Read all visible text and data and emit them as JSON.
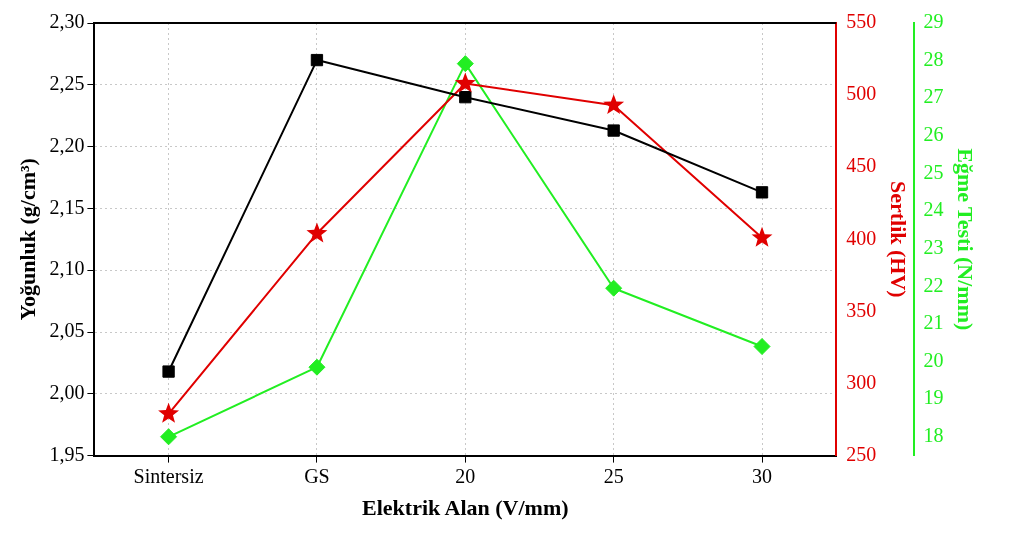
{
  "chart_data": {
    "type": "line",
    "xlabel": "Elektrik Alan (V/mm)",
    "ylabel": "Yoğunluk (g/cm³)",
    "y2label": "Sertlik (HV)",
    "y3label": "Eğme Testi (N/mm)",
    "categories": [
      "Sintersiz",
      "GS",
      "20",
      "25",
      "30"
    ],
    "ylim": [
      1.95,
      2.3
    ],
    "yticks": [
      {
        "value": 1.95,
        "label": "1,95"
      },
      {
        "value": 2.0,
        "label": "2,00"
      },
      {
        "value": 2.05,
        "label": "2,05"
      },
      {
        "value": 2.1,
        "label": "2,10"
      },
      {
        "value": 2.15,
        "label": "2,15"
      },
      {
        "value": 2.2,
        "label": "2,20"
      },
      {
        "value": 2.25,
        "label": "2,25"
      },
      {
        "value": 2.3,
        "label": "2,30"
      }
    ],
    "y2lim": [
      250,
      550
    ],
    "y2ticks": [
      250,
      300,
      350,
      400,
      450,
      500,
      550
    ],
    "y3lim": [
      17.5,
      29
    ],
    "y3ticks": [
      18,
      19,
      20,
      21,
      22,
      23,
      24,
      25,
      26,
      27,
      28,
      29
    ],
    "grid": true,
    "legend": false,
    "line_style": "solid",
    "series": [
      {
        "color": "#000000",
        "marker": "square",
        "values": [
          2.018,
          2.27,
          2.24,
          2.213,
          2.163
        ]
      },
      {
        "color": "#e00000",
        "marker": "star",
        "axis": "y2",
        "values": [
          279,
          404,
          508,
          493,
          401
        ]
      },
      {
        "color": "#22ee22",
        "marker": "diamond",
        "axis": "y3",
        "values": [
          18.0,
          19.85,
          27.92,
          21.95,
          20.4
        ]
      }
    ]
  }
}
